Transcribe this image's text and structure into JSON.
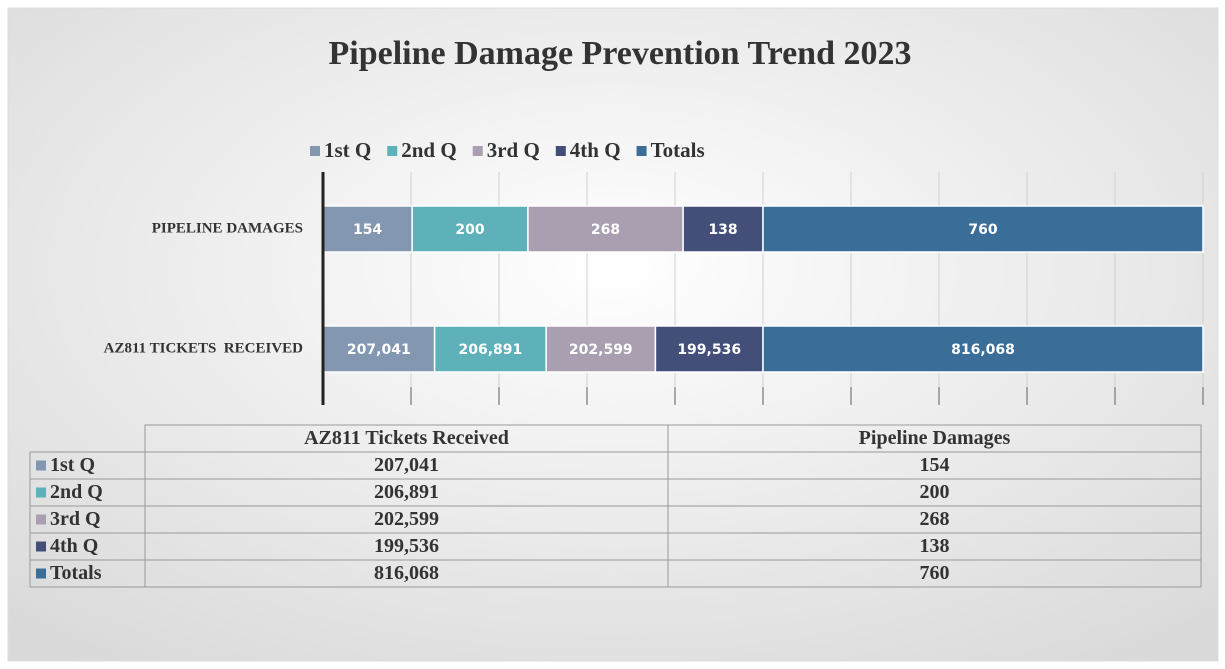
{
  "chart_data": {
    "type": "stacked_percent_barh",
    "title": "Pipeline Damage Prevention Trend 2023",
    "categories": [
      "PIPELINE DAMAGES",
      "AZ811 TICKETS  RECEIVED"
    ],
    "series": [
      {
        "name": "1st Q",
        "color": "#8497b0",
        "values": [
          154,
          207041
        ],
        "value_labels": [
          "154",
          "207,041"
        ]
      },
      {
        "name": "2nd Q",
        "color": "#5eb1b8",
        "values": [
          200,
          206891
        ],
        "value_labels": [
          "200",
          "206,891"
        ]
      },
      {
        "name": "3rd Q",
        "color": "#a99fb0",
        "values": [
          268,
          202599
        ],
        "value_labels": [
          "268",
          "202,599"
        ]
      },
      {
        "name": "4th Q",
        "color": "#434f79",
        "values": [
          138,
          199536
        ],
        "value_labels": [
          "138",
          "199,536"
        ]
      },
      {
        "name": "Totals",
        "color": "#3a6e99",
        "values": [
          760,
          816068
        ],
        "value_labels": [
          "760",
          "816,068"
        ]
      }
    ],
    "xlim": [
      0,
      100
    ],
    "xticks": [
      0,
      10,
      20,
      30,
      40,
      50,
      60,
      70,
      80,
      90,
      100
    ],
    "grid": true,
    "legend": "top",
    "table_headers": [
      "AZ811 Tickets Received",
      "Pipeline Damages"
    ]
  }
}
